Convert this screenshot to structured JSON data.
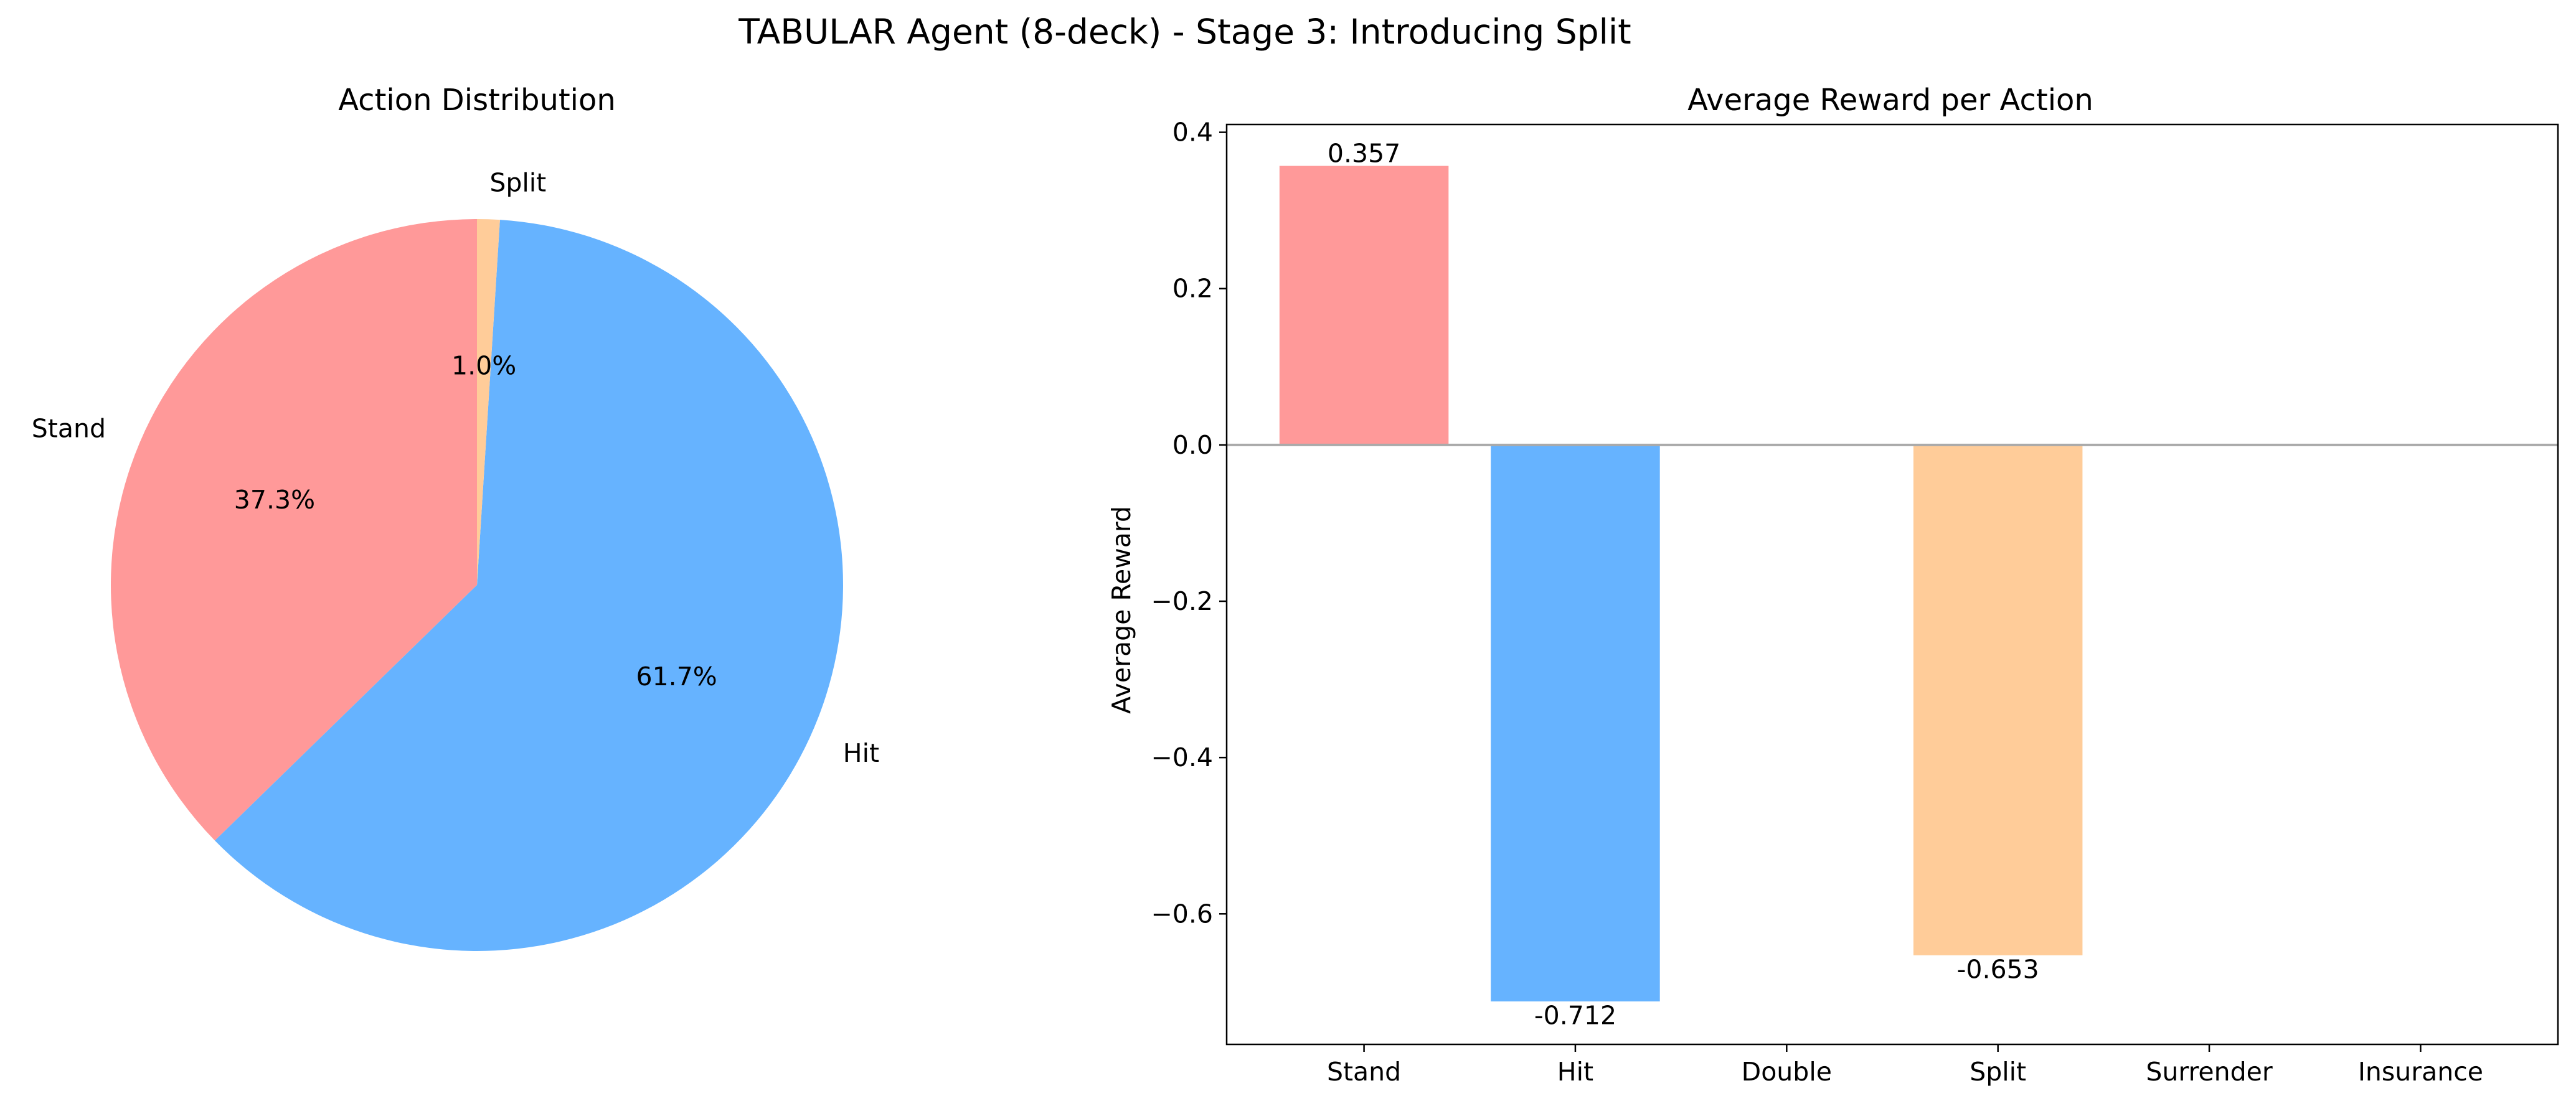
{
  "figure": {
    "title": "TABULAR Agent (8-deck) - Stage 3: Introducing Split"
  },
  "chart_data": [
    {
      "type": "pie",
      "title": "Action Distribution",
      "start_angle_deg": 90,
      "direction": "counterclockwise",
      "slices": [
        {
          "label": "Stand",
          "value": 37.3,
          "pct_label": "37.3%",
          "color": "#ff9999"
        },
        {
          "label": "Hit",
          "value": 61.7,
          "pct_label": "61.7%",
          "color": "#66b3ff"
        },
        {
          "label": "Split",
          "value": 1.0,
          "pct_label": "1.0%",
          "color": "#ffcc99"
        }
      ]
    },
    {
      "type": "bar",
      "title": "Average Reward per Action",
      "xlabel": "",
      "ylabel": "Average Reward",
      "categories": [
        "Stand",
        "Hit",
        "Double",
        "Split",
        "Surrender",
        "Insurance"
      ],
      "values": [
        0.357,
        -0.712,
        null,
        -0.653,
        null,
        null
      ],
      "value_labels": [
        "0.357",
        "-0.712",
        "",
        "-0.653",
        "",
        ""
      ],
      "colors": [
        "#ff9999",
        "#66b3ff",
        "#99ff99",
        "#ffcc99",
        "#c2c2f0",
        "#ffb3e6"
      ],
      "ylim": [
        -0.767,
        0.41
      ],
      "yticks": [
        0.4,
        0.2,
        0.0,
        -0.2,
        -0.4,
        -0.6
      ],
      "ytick_labels": [
        "0.4",
        "0.2",
        "0.0",
        "−0.2",
        "−0.4",
        "−0.6"
      ],
      "zero_line_color": "#aaaaaa",
      "grid": false
    }
  ]
}
